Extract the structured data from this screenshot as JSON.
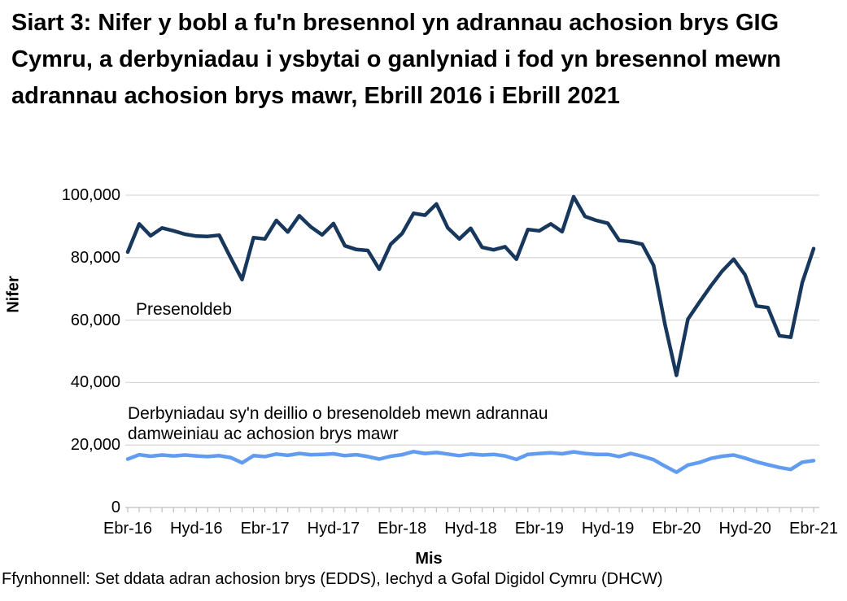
{
  "title": "Siart 3: Nifer y bobl a fu'n bresennol yn adrannau achosion brys GIG Cymru, a derbyniadau i ysbytai o ganlyniad i fod yn bresennol mewn adrannau achosion brys mawr, Ebrill 2016 i Ebrill 2021",
  "labels": {
    "y_axis_title": "Nifer",
    "x_axis_title": "Mis",
    "series1_annotation": "Presenoldeb",
    "series2_annotation_line1": "Derbyniadau sy'n deillio o bresenoldeb mewn adrannau",
    "series2_annotation_line2": "damweiniau ac achosion brys mawr"
  },
  "source": "Ffynhonnell: Set ddata adran achosion brys (EDDS), Iechyd a Gofal Digidol Cymru (DHCW)",
  "colors": {
    "attendances_line": "#17375D",
    "admissions_line": "#619CF0",
    "gridline": "#D9D9D9",
    "axis": "#BFBFBF",
    "text": "#000000"
  },
  "chart_data": {
    "type": "line",
    "title": "Siart 3: Nifer y bobl a fu'n bresennol yn adrannau achosion brys GIG Cymru, a derbyniadau i ysbytai o ganlyniad i fod yn bresennol mewn adrannau achosion brys mawr, Ebrill 2016 i Ebrill 2021",
    "xlabel": "Mis",
    "ylabel": "Nifer",
    "ylim": [
      0,
      100000
    ],
    "grid": true,
    "legend_position": "inline-annotations",
    "x_is_monthly_from": "Ebrill 2016",
    "x_is_monthly_to": "Ebrill 2021",
    "x_tick_labels": [
      "Ebr-16",
      "Hyd-16",
      "Ebr-17",
      "Hyd-17",
      "Ebr-18",
      "Hyd-18",
      "Ebr-19",
      "Hyd-19",
      "Ebr-20",
      "Hyd-20",
      "Ebr-21"
    ],
    "x_tick_month_indices": [
      0,
      6,
      12,
      18,
      24,
      30,
      36,
      42,
      48,
      54,
      60
    ],
    "y_tick_labels": [
      "0",
      "20,000",
      "40,000",
      "60,000",
      "80,000",
      "100,000"
    ],
    "y_tick_values": [
      0,
      20000,
      40000,
      60000,
      80000,
      100000
    ],
    "series": [
      {
        "name": "Presenoldeb",
        "color": "#17375D",
        "values": [
          81800,
          90800,
          87000,
          89500,
          88600,
          87500,
          86900,
          86800,
          87200,
          80000,
          73000,
          86400,
          86000,
          91900,
          88200,
          93400,
          89900,
          87300,
          90900,
          83800,
          82600,
          82300,
          76300,
          84300,
          87700,
          94200,
          93600,
          97200,
          89500,
          86000,
          89400,
          83300,
          82500,
          83500,
          79500,
          89000,
          88600,
          90800,
          88300,
          99500,
          93200,
          91900,
          91000,
          85500,
          85100,
          84300,
          77500,
          58500,
          42300,
          60300,
          65700,
          70900,
          75700,
          79500,
          74500,
          64500,
          64000,
          55000,
          54500,
          72000,
          82900
        ]
      },
      {
        "name": "Derbyniadau sy'n deillio o bresenoldeb mewn adrannau damweiniau ac achosion brys mawr",
        "color": "#619CF0",
        "values": [
          15500,
          16900,
          16400,
          16800,
          16500,
          16800,
          16500,
          16300,
          16600,
          16000,
          14300,
          16600,
          16300,
          17100,
          16700,
          17300,
          16900,
          17000,
          17200,
          16600,
          16900,
          16300,
          15500,
          16400,
          16900,
          17900,
          17300,
          17600,
          17100,
          16600,
          17100,
          16800,
          17000,
          16500,
          15400,
          17000,
          17300,
          17500,
          17200,
          17800,
          17300,
          17000,
          17000,
          16300,
          17300,
          16400,
          15300,
          13200,
          11300,
          13600,
          14400,
          15700,
          16400,
          16800,
          15800,
          14600,
          13700,
          12800,
          12200,
          14500,
          15000
        ]
      }
    ]
  }
}
